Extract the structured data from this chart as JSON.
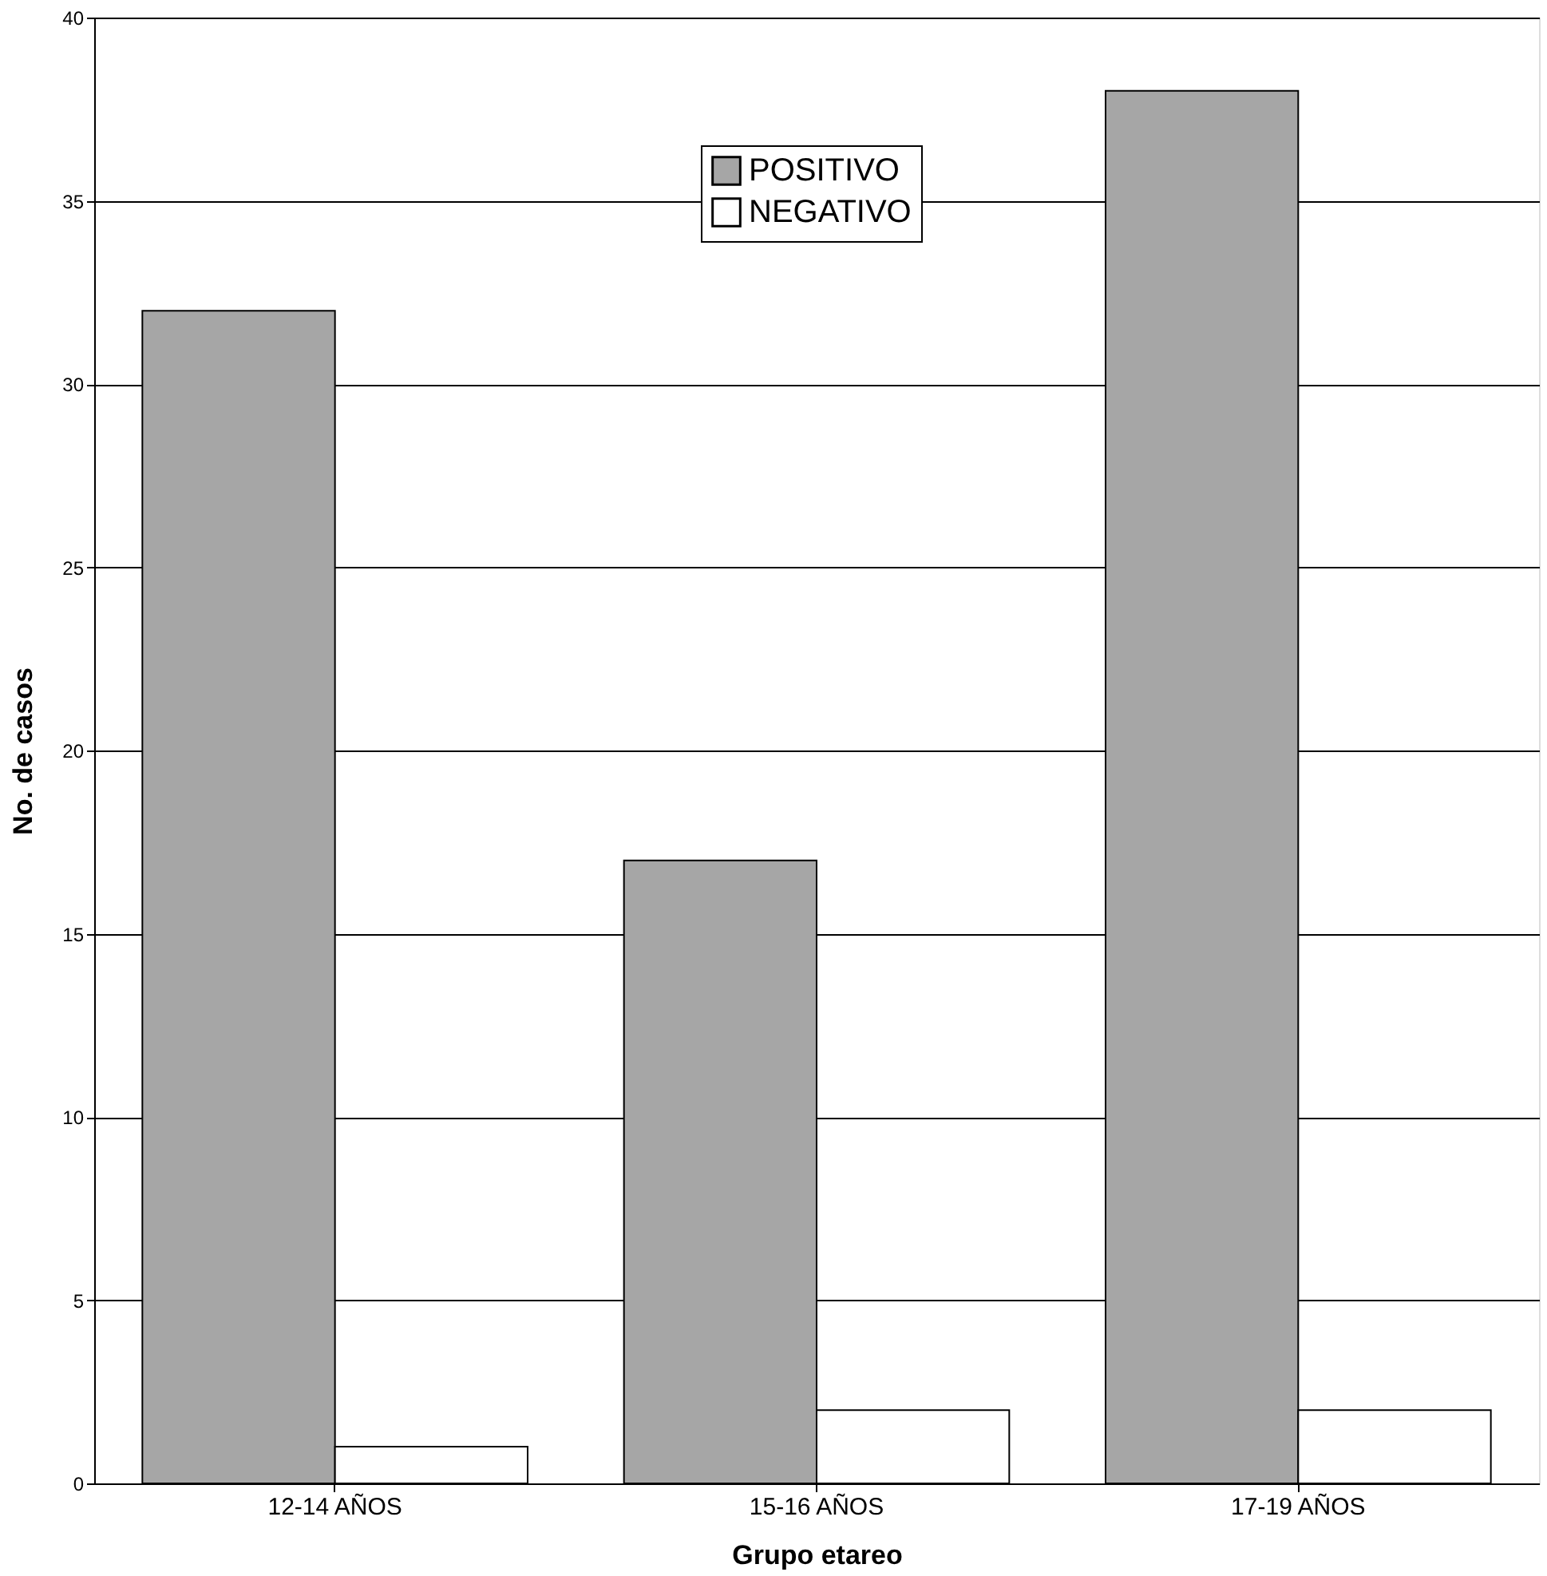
{
  "chart_data": {
    "type": "bar",
    "xlabel": "Grupo etareo",
    "ylabel": "No. de casos",
    "categories": [
      "12-14 AÑOS",
      "15-16 AÑOS",
      "17-19 AÑOS"
    ],
    "series": [
      {
        "name": "POSITIVO",
        "color": "#a6a6a6",
        "values": [
          32,
          17,
          38
        ]
      },
      {
        "name": "NEGATIVO",
        "color": "#ffffff",
        "values": [
          1,
          2,
          2
        ]
      }
    ],
    "ylim": [
      0,
      40
    ],
    "yticks": [
      0,
      5,
      10,
      15,
      20,
      25,
      30,
      35,
      40
    ],
    "grid": "y",
    "legend": "top"
  }
}
